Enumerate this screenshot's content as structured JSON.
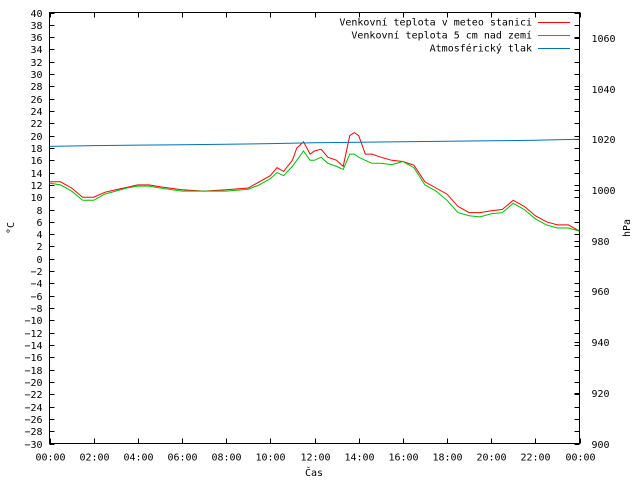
{
  "chart_data": {
    "type": "line",
    "xlabel": "Čas",
    "ylabel_left": "°C",
    "ylabel_right": "hPa",
    "x_ticks": [
      "00:00",
      "02:00",
      "04:00",
      "06:00",
      "08:00",
      "10:00",
      "12:00",
      "14:00",
      "16:00",
      "18:00",
      "20:00",
      "22:00",
      "00:00"
    ],
    "x_range_hours": [
      0,
      24
    ],
    "y_left_range": [
      -30,
      40
    ],
    "y_left_step": 2,
    "y_right_range": [
      900,
      1070
    ],
    "y_right_ticks": [
      900,
      920,
      940,
      960,
      980,
      1000,
      1020,
      1040,
      1060
    ],
    "legend_position": "top-right",
    "series": [
      {
        "name": "Venkovní teplota v meteo stanici",
        "color": "#ff0000",
        "axis": "left",
        "x": [
          0,
          0.5,
          1,
          1.5,
          2,
          2.5,
          3,
          3.5,
          4,
          4.5,
          5,
          6,
          7,
          8,
          9,
          9.5,
          10,
          10.3,
          10.6,
          11,
          11.2,
          11.5,
          11.8,
          12,
          12.3,
          12.6,
          13,
          13.3,
          13.6,
          13.8,
          14,
          14.3,
          14.6,
          15,
          15.5,
          16,
          16.5,
          17,
          17.5,
          18,
          18.5,
          19,
          19.5,
          20,
          20.5,
          21,
          21.5,
          22,
          22.5,
          23,
          23.5,
          24
        ],
        "y": [
          12.5,
          12.5,
          11.5,
          10,
          10,
          10.8,
          11.2,
          11.6,
          12,
          12,
          11.7,
          11.2,
          11,
          11.2,
          11.5,
          12.5,
          13.5,
          14.8,
          14.2,
          16,
          18,
          19,
          17,
          17.5,
          17.8,
          16.5,
          16,
          15,
          20,
          20.5,
          20,
          17,
          17,
          16.5,
          16,
          15.8,
          15.2,
          12.5,
          11.5,
          10.5,
          8.5,
          7.5,
          7.5,
          7.8,
          8,
          9.5,
          8.5,
          7,
          6,
          5.5,
          5.5,
          4.5
        ]
      },
      {
        "name": "Venkovní teplota 5 cm nad zemí",
        "color": "#00c000",
        "axis": "left",
        "x": [
          0,
          0.5,
          1,
          1.5,
          2,
          2.5,
          3,
          3.5,
          4,
          4.5,
          5,
          6,
          7,
          8,
          9,
          9.5,
          10,
          10.3,
          10.6,
          11,
          11.2,
          11.5,
          11.8,
          12,
          12.3,
          12.6,
          13,
          13.3,
          13.6,
          13.8,
          14,
          14.3,
          14.6,
          15,
          15.5,
          16,
          16.5,
          17,
          17.5,
          18,
          18.5,
          19,
          19.5,
          20,
          20.5,
          21,
          21.5,
          22,
          22.5,
          23,
          23.5,
          24
        ],
        "y": [
          12.3,
          12,
          11,
          9.5,
          9.5,
          10.5,
          11,
          11.5,
          11.8,
          11.8,
          11.5,
          11,
          11,
          11,
          11.3,
          12,
          13,
          14,
          13.5,
          15,
          16,
          17.5,
          16,
          16,
          16.5,
          15.5,
          15,
          14.5,
          17,
          17,
          16.5,
          16,
          15.5,
          15.5,
          15.3,
          15.8,
          14.8,
          12,
          11,
          9.5,
          7.5,
          7,
          6.8,
          7.3,
          7.5,
          9,
          8,
          6.5,
          5.5,
          5,
          5,
          4.5
        ]
      },
      {
        "name": "Atmosférický tlak",
        "color": "#0070c0",
        "axis": "right",
        "x": [
          0,
          2,
          4,
          6,
          8,
          10,
          12,
          14,
          16,
          18,
          20,
          22,
          24
        ],
        "y": [
          1017.2,
          1017.5,
          1017.7,
          1017.8,
          1018,
          1018.3,
          1018.6,
          1018.8,
          1019,
          1019.2,
          1019.4,
          1019.6,
          1020
        ]
      }
    ]
  }
}
